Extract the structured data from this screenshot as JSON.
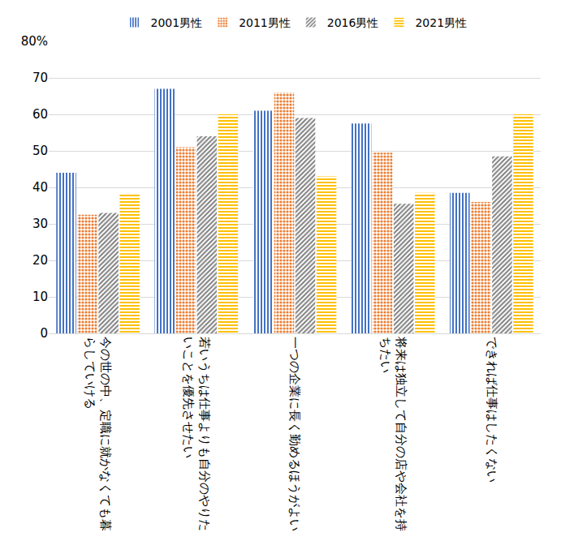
{
  "chart_data": {
    "type": "bar",
    "categories": [
      "今の世の中、定職に就かなくても暮らしていける",
      "若いうちは仕事よりも自分のやりたいことを優先させたい",
      "一つの企業に長く勤めるほうがよい",
      "将来は独立して自分の店や会社を持ちたい",
      "できれば仕事はしたくない"
    ],
    "series": [
      {
        "name": "2001男性",
        "color": "#4472c4",
        "values": [
          44,
          67,
          61,
          57.5,
          38.5
        ]
      },
      {
        "name": "2011男性",
        "color": "#ed7d31",
        "values": [
          32.5,
          51,
          66,
          49.5,
          36
        ]
      },
      {
        "name": "2016男性",
        "color": "#7f7f7f",
        "values": [
          33,
          54,
          59,
          35.5,
          48.5
        ]
      },
      {
        "name": "2021男性",
        "color": "#ffc000",
        "values": [
          38,
          60,
          43,
          38.5,
          60
        ]
      }
    ],
    "ylim": [
      0,
      80
    ],
    "yticks": [
      0,
      10,
      20,
      30,
      40,
      50,
      60,
      70,
      {
        "value": 80,
        "label": "80%"
      }
    ],
    "grid": true,
    "legend": "top"
  }
}
